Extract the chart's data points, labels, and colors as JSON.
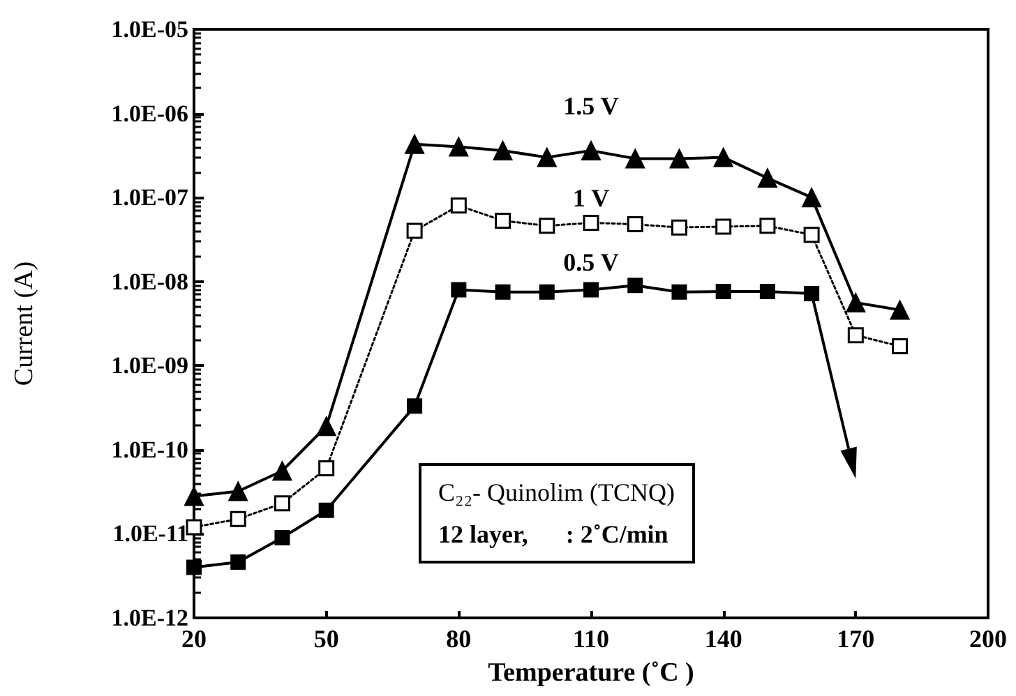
{
  "chart_data": {
    "type": "line",
    "xlabel": "Temperature (˚C )",
    "ylabel": "Current (A)",
    "x": [
      20,
      30,
      40,
      50,
      70,
      80,
      90,
      100,
      110,
      120,
      130,
      140,
      150,
      160,
      170,
      180
    ],
    "series": [
      {
        "name": "1.5 V",
        "color": "#000000",
        "marker": "triangle",
        "line_style": "solid",
        "values": [
          2.8e-11,
          3.2e-11,
          5.6e-11,
          1.9e-10,
          4.3e-07,
          4e-07,
          3.6e-07,
          3e-07,
          3.6e-07,
          2.9e-07,
          2.9e-07,
          3e-07,
          1.7e-07,
          1e-07,
          5.6e-09,
          4.6e-09
        ]
      },
      {
        "name": "1 V",
        "color": "#000000",
        "marker": "square",
        "line_style": "dotted",
        "values": [
          1.2e-11,
          1.5e-11,
          2.3e-11,
          6e-11,
          4e-08,
          8e-08,
          5.3e-08,
          4.6e-08,
          5e-08,
          4.8e-08,
          4.4e-08,
          4.5e-08,
          4.6e-08,
          3.6e-08,
          2.3e-09,
          1.7e-09
        ]
      },
      {
        "name": "0.5 V",
        "color": "#000000",
        "marker": "square",
        "line_style": "solid",
        "values": [
          4e-12,
          4.6e-12,
          9e-12,
          1.9e-11,
          3.3e-10,
          8e-09,
          7.5e-09,
          7.5e-09,
          8e-09,
          9e-09,
          7.5e-09,
          7.6e-09,
          7.6e-09,
          7.2e-09,
          null,
          null
        ]
      }
    ],
    "log": "y",
    "xlim": [
      20,
      200
    ],
    "xticks": [
      20,
      50,
      80,
      110,
      140,
      170,
      200
    ],
    "ylim": [
      1e-12,
      1e-05
    ],
    "yticks": [
      {
        "value": 1e-12,
        "label": "1.0E-12"
      },
      {
        "value": 1e-11,
        "label": "1.0E-11"
      },
      {
        "value": 1e-10,
        "label": "1.0E-10"
      },
      {
        "value": 1e-09,
        "label": "1.0E-09"
      },
      {
        "value": 1e-08,
        "label": "1.0E-08"
      },
      {
        "value": 1e-07,
        "label": "1.0E-07"
      },
      {
        "value": 1e-06,
        "label": "1.0E-06"
      },
      {
        "value": 1e-05,
        "label": "1.0E-05"
      }
    ],
    "grid": false,
    "legend": false,
    "annotations": [
      "C₂₂- Quinolim (TCNQ)",
      "12 layer,      : 2˚C/min"
    ]
  }
}
